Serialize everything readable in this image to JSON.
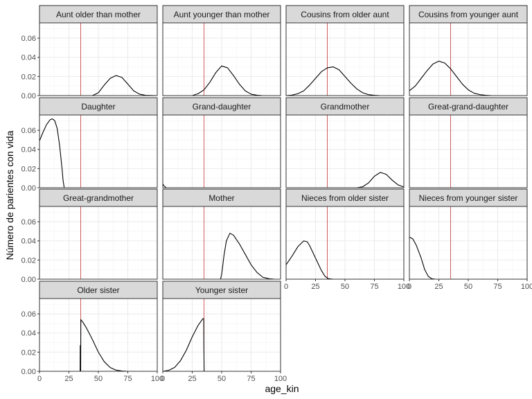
{
  "chart_data": {
    "type": "line",
    "facet_layout": "wrap-4-columns",
    "xlabel": "age_kin",
    "ylabel": "Número de parientes con vida",
    "xlim": [
      0,
      100
    ],
    "ylim": [
      0,
      0.076
    ],
    "x_ticks": [
      0,
      25,
      50,
      75,
      100
    ],
    "x_tick_labels": [
      "0",
      "25",
      "50",
      "75",
      "100"
    ],
    "y_ticks": [
      0,
      0.02,
      0.04,
      0.06
    ],
    "y_tick_labels": [
      "0.00",
      "0.02",
      "0.04",
      "0.06"
    ],
    "reference_line": {
      "x": 35,
      "color": "#cd5c5c"
    },
    "colors": {
      "line": "#000000",
      "strip_bg": "#d9d9d9",
      "grid": "#ebebeb",
      "panel_border": "#333333"
    },
    "grid": true,
    "panels": [
      {
        "name": "Aunt older than mother",
        "points": [
          [
            0,
            0
          ],
          [
            45,
            0
          ],
          [
            50,
            0.003
          ],
          [
            55,
            0.011
          ],
          [
            60,
            0.018
          ],
          [
            65,
            0.021
          ],
          [
            70,
            0.019
          ],
          [
            75,
            0.012
          ],
          [
            80,
            0.005
          ],
          [
            85,
            0.0015
          ],
          [
            90,
            0.0003
          ],
          [
            100,
            0
          ]
        ]
      },
      {
        "name": "Aunt younger than mother",
        "points": [
          [
            0,
            0
          ],
          [
            25,
            0
          ],
          [
            30,
            0.002
          ],
          [
            35,
            0.006
          ],
          [
            40,
            0.014
          ],
          [
            45,
            0.024
          ],
          [
            50,
            0.031
          ],
          [
            55,
            0.029
          ],
          [
            60,
            0.021
          ],
          [
            65,
            0.012
          ],
          [
            70,
            0.005
          ],
          [
            75,
            0.0015
          ],
          [
            80,
            0.0004
          ],
          [
            85,
            0
          ],
          [
            100,
            0
          ]
        ]
      },
      {
        "name": "Cousins from older aunt",
        "points": [
          [
            0,
            0
          ],
          [
            5,
            0.0005
          ],
          [
            10,
            0.002
          ],
          [
            15,
            0.005
          ],
          [
            20,
            0.011
          ],
          [
            25,
            0.018
          ],
          [
            30,
            0.025
          ],
          [
            35,
            0.029
          ],
          [
            40,
            0.03
          ],
          [
            45,
            0.027
          ],
          [
            50,
            0.02
          ],
          [
            55,
            0.013
          ],
          [
            60,
            0.007
          ],
          [
            65,
            0.003
          ],
          [
            70,
            0.001
          ],
          [
            75,
            0.0003
          ],
          [
            80,
            0
          ],
          [
            100,
            0
          ]
        ]
      },
      {
        "name": "Cousins from younger aunt",
        "points": [
          [
            0,
            0.005
          ],
          [
            5,
            0.01
          ],
          [
            10,
            0.018
          ],
          [
            15,
            0.026
          ],
          [
            20,
            0.033
          ],
          [
            25,
            0.036
          ],
          [
            30,
            0.034
          ],
          [
            35,
            0.028
          ],
          [
            40,
            0.02
          ],
          [
            45,
            0.012
          ],
          [
            50,
            0.006
          ],
          [
            55,
            0.0025
          ],
          [
            60,
            0.001
          ],
          [
            65,
            0.0003
          ],
          [
            70,
            0
          ],
          [
            100,
            0
          ]
        ]
      },
      {
        "name": "Daughter",
        "points": [
          [
            0,
            0.049
          ],
          [
            3,
            0.058
          ],
          [
            6,
            0.066
          ],
          [
            9,
            0.071
          ],
          [
            11,
            0.072
          ],
          [
            13,
            0.07
          ],
          [
            15,
            0.062
          ],
          [
            17,
            0.045
          ],
          [
            19,
            0.022
          ],
          [
            20,
            0.008
          ],
          [
            21,
            0
          ],
          [
            100,
            0
          ]
        ]
      },
      {
        "name": "Grand-daughter",
        "points": [
          [
            0,
            0.004
          ],
          [
            1,
            0.002
          ],
          [
            3,
            0
          ],
          [
            100,
            0
          ]
        ]
      },
      {
        "name": "Grandmother",
        "points": [
          [
            0,
            0
          ],
          [
            60,
            0
          ],
          [
            65,
            0.001
          ],
          [
            70,
            0.005
          ],
          [
            75,
            0.012
          ],
          [
            80,
            0.016
          ],
          [
            85,
            0.014
          ],
          [
            90,
            0.008
          ],
          [
            95,
            0.003
          ],
          [
            100,
            0.0008
          ]
        ]
      },
      {
        "name": "Great-grand-daughter",
        "points": [
          [
            0,
            0
          ],
          [
            100,
            0
          ]
        ]
      },
      {
        "name": "Great-grandmother",
        "points": [
          [
            0,
            0
          ],
          [
            100,
            0
          ]
        ]
      },
      {
        "name": "Mother",
        "points": [
          [
            0,
            0
          ],
          [
            49,
            0
          ],
          [
            50,
            0.005
          ],
          [
            52,
            0.025
          ],
          [
            54,
            0.04
          ],
          [
            57,
            0.048
          ],
          [
            60,
            0.046
          ],
          [
            65,
            0.037
          ],
          [
            70,
            0.026
          ],
          [
            75,
            0.015
          ],
          [
            80,
            0.007
          ],
          [
            85,
            0.002
          ],
          [
            90,
            0.0005
          ],
          [
            95,
            0
          ],
          [
            100,
            0
          ]
        ]
      },
      {
        "name": "Nieces from older sister",
        "points": [
          [
            0,
            0.015
          ],
          [
            5,
            0.024
          ],
          [
            10,
            0.034
          ],
          [
            15,
            0.04
          ],
          [
            18,
            0.039
          ],
          [
            20,
            0.035
          ],
          [
            25,
            0.022
          ],
          [
            30,
            0.009
          ],
          [
            33,
            0.003
          ],
          [
            36,
            0.0005
          ],
          [
            40,
            0
          ],
          [
            100,
            0
          ]
        ]
      },
      {
        "name": "Nieces from younger sister",
        "points": [
          [
            0,
            0.044
          ],
          [
            3,
            0.042
          ],
          [
            6,
            0.035
          ],
          [
            10,
            0.022
          ],
          [
            13,
            0.01
          ],
          [
            16,
            0.003
          ],
          [
            19,
            0.0005
          ],
          [
            22,
            0
          ],
          [
            100,
            0
          ]
        ]
      },
      {
        "name": "Older sister",
        "points": [
          [
            0,
            0
          ],
          [
            34.5,
            0
          ],
          [
            34.6,
            0.027
          ],
          [
            34.8,
            0
          ],
          [
            35,
            0
          ],
          [
            35.1,
            0.054
          ],
          [
            37,
            0.051
          ],
          [
            40,
            0.045
          ],
          [
            45,
            0.033
          ],
          [
            50,
            0.02
          ],
          [
            55,
            0.01
          ],
          [
            60,
            0.004
          ],
          [
            65,
            0.0012
          ],
          [
            70,
            0.0003
          ],
          [
            75,
            0
          ],
          [
            100,
            0
          ]
        ]
      },
      {
        "name": "Younger sister",
        "points": [
          [
            0,
            0
          ],
          [
            5,
            0.001
          ],
          [
            10,
            0.004
          ],
          [
            15,
            0.011
          ],
          [
            20,
            0.022
          ],
          [
            25,
            0.036
          ],
          [
            30,
            0.048
          ],
          [
            34,
            0.055
          ],
          [
            34.8,
            0.055
          ],
          [
            34.9,
            0.028
          ],
          [
            35,
            0.014
          ],
          [
            35.1,
            0
          ]
        ]
      }
    ]
  }
}
